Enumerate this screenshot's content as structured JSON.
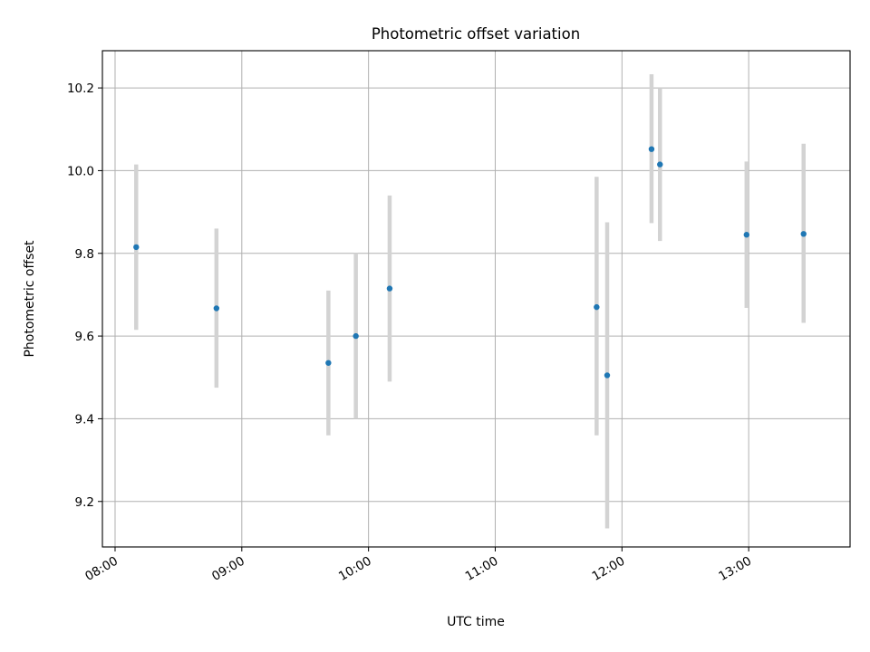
{
  "chart_data": {
    "type": "scatter",
    "title": "Photometric offset variation",
    "xlabel": "UTC time",
    "ylabel": "Photometric offset",
    "x_ticks": [
      "08:00",
      "09:00",
      "10:00",
      "11:00",
      "12:00",
      "13:00"
    ],
    "y_ticks": [
      "9.2",
      "9.4",
      "9.6",
      "9.8",
      "10.0",
      "10.2"
    ],
    "xlim": [
      "07:54",
      "13:48"
    ],
    "ylim": [
      9.09,
      10.29
    ],
    "grid": true,
    "colors": {
      "points": "#1f77b4",
      "error_bars": "#d3d3d3",
      "grid": "#b0b0b0"
    },
    "points": [
      {
        "x": "08:10",
        "y": 9.815,
        "yerr_low": 9.615,
        "yerr_high": 10.015
      },
      {
        "x": "08:48",
        "y": 9.667,
        "yerr_low": 9.475,
        "yerr_high": 9.86
      },
      {
        "x": "09:41",
        "y": 9.535,
        "yerr_low": 9.36,
        "yerr_high": 9.71
      },
      {
        "x": "09:54",
        "y": 9.6,
        "yerr_low": 9.4,
        "yerr_high": 9.8
      },
      {
        "x": "10:10",
        "y": 9.715,
        "yerr_low": 9.49,
        "yerr_high": 9.94
      },
      {
        "x": "11:48",
        "y": 9.67,
        "yerr_low": 9.36,
        "yerr_high": 9.985
      },
      {
        "x": "11:53",
        "y": 9.505,
        "yerr_low": 9.135,
        "yerr_high": 9.875
      },
      {
        "x": "12:14",
        "y": 10.052,
        "yerr_low": 9.873,
        "yerr_high": 10.233
      },
      {
        "x": "12:18",
        "y": 10.015,
        "yerr_low": 9.83,
        "yerr_high": 10.2
      },
      {
        "x": "12:59",
        "y": 9.845,
        "yerr_low": 9.668,
        "yerr_high": 10.022
      },
      {
        "x": "13:26",
        "y": 9.847,
        "yerr_low": 9.632,
        "yerr_high": 10.065
      }
    ]
  }
}
